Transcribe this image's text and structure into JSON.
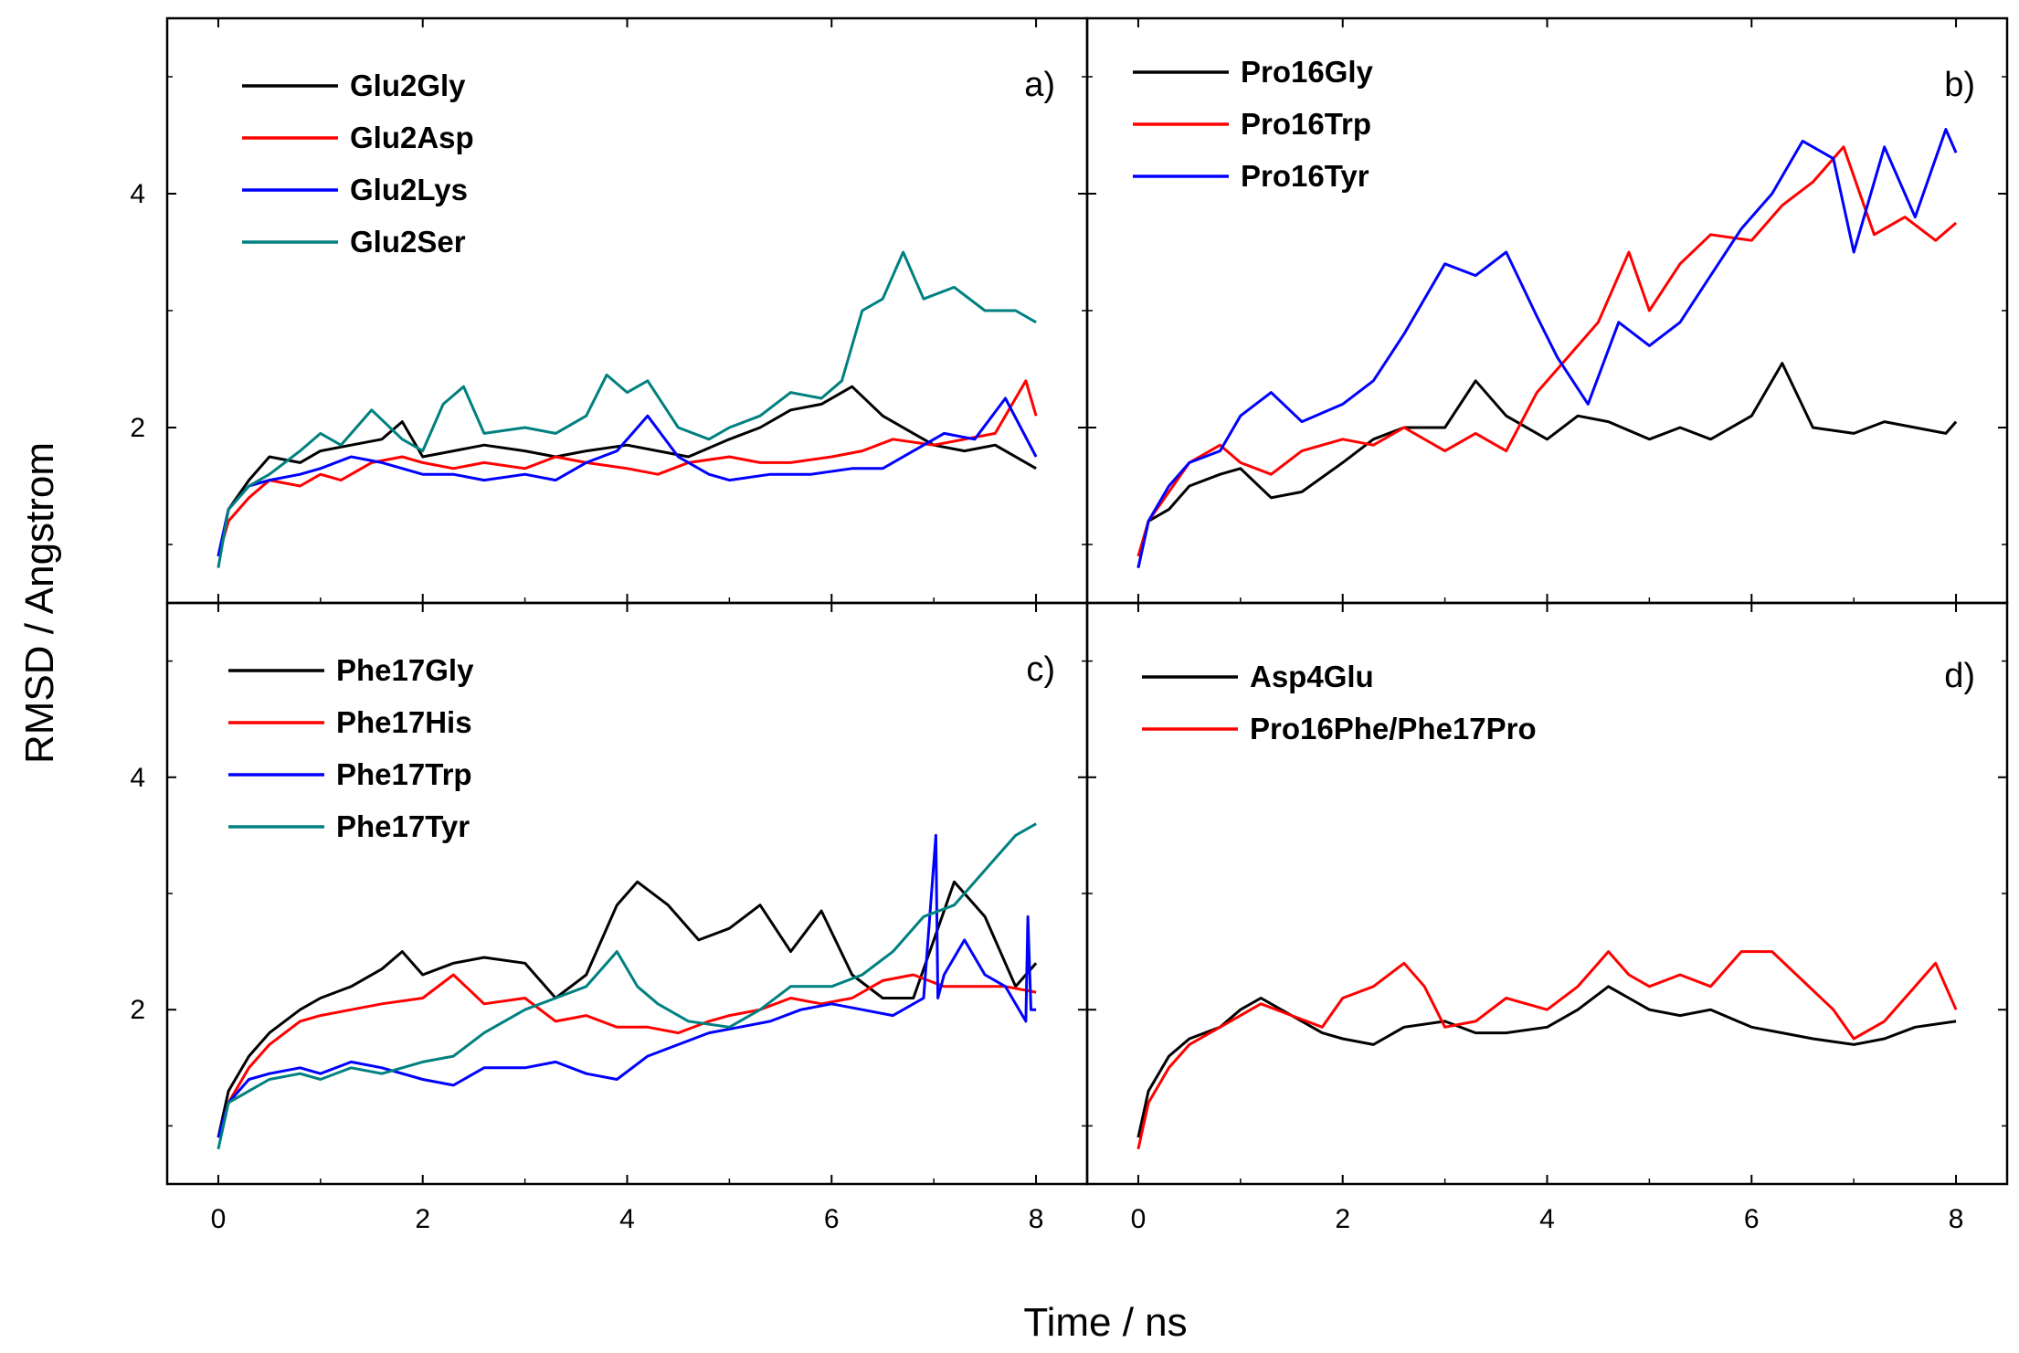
{
  "chart_data": {
    "type": "line",
    "title": "",
    "xlabel": "Time / ns",
    "ylabel": "RMSD / Angstrom",
    "xlim": [
      -0.5,
      8.5
    ],
    "ylim": [
      0.5,
      5.5
    ],
    "x_ticks": [
      0,
      2,
      4,
      6,
      8
    ],
    "x_tick_labels": [
      "0",
      "2",
      "4",
      "6",
      "8"
    ],
    "y_ticks": [
      2,
      4
    ],
    "y_tick_labels": [
      "2",
      "4"
    ],
    "colors": {
      "black": "#000000",
      "red": "#ff0000",
      "blue": "#0000ff",
      "teal": "#008080"
    },
    "panels": [
      {
        "label": "a)",
        "series": [
          {
            "name": "Glu2Gly",
            "color": "#000000",
            "x": [
              0,
              0.1,
              0.3,
              0.5,
              0.8,
              1.0,
              1.3,
              1.6,
              1.8,
              2.0,
              2.3,
              2.6,
              3.0,
              3.3,
              3.6,
              4.0,
              4.3,
              4.6,
              5.0,
              5.3,
              5.6,
              5.9,
              6.2,
              6.5,
              6.8,
              7.0,
              7.3,
              7.6,
              8.0
            ],
            "values": [
              0.9,
              1.3,
              1.55,
              1.75,
              1.7,
              1.8,
              1.85,
              1.9,
              2.05,
              1.75,
              1.8,
              1.85,
              1.8,
              1.75,
              1.8,
              1.85,
              1.8,
              1.75,
              1.9,
              2.0,
              2.15,
              2.2,
              2.35,
              2.1,
              1.95,
              1.85,
              1.8,
              1.85,
              1.65
            ]
          },
          {
            "name": "Glu2Asp",
            "color": "#ff0000",
            "x": [
              0,
              0.1,
              0.3,
              0.5,
              0.8,
              1.0,
              1.2,
              1.5,
              1.8,
              2.0,
              2.3,
              2.6,
              3.0,
              3.3,
              3.6,
              4.0,
              4.3,
              4.6,
              5.0,
              5.3,
              5.6,
              6.0,
              6.3,
              6.6,
              7.0,
              7.3,
              7.6,
              7.9,
              8.0
            ],
            "values": [
              0.9,
              1.2,
              1.4,
              1.55,
              1.5,
              1.6,
              1.55,
              1.7,
              1.75,
              1.7,
              1.65,
              1.7,
              1.65,
              1.75,
              1.7,
              1.65,
              1.6,
              1.7,
              1.75,
              1.7,
              1.7,
              1.75,
              1.8,
              1.9,
              1.85,
              1.9,
              1.95,
              2.4,
              2.1
            ]
          },
          {
            "name": "Glu2Lys",
            "color": "#0000ff",
            "x": [
              0,
              0.1,
              0.3,
              0.5,
              0.8,
              1.0,
              1.3,
              1.6,
              2.0,
              2.3,
              2.6,
              3.0,
              3.3,
              3.6,
              3.9,
              4.2,
              4.5,
              4.8,
              5.0,
              5.4,
              5.8,
              6.2,
              6.5,
              6.8,
              7.1,
              7.4,
              7.7,
              8.0
            ],
            "values": [
              0.9,
              1.3,
              1.5,
              1.55,
              1.6,
              1.65,
              1.75,
              1.7,
              1.6,
              1.6,
              1.55,
              1.6,
              1.55,
              1.7,
              1.8,
              2.1,
              1.75,
              1.6,
              1.55,
              1.6,
              1.6,
              1.65,
              1.65,
              1.8,
              1.95,
              1.9,
              2.25,
              1.75
            ]
          },
          {
            "name": "Glu2Ser",
            "color": "#008080",
            "x": [
              0,
              0.1,
              0.3,
              0.5,
              0.8,
              1.0,
              1.2,
              1.5,
              1.8,
              2.0,
              2.2,
              2.4,
              2.6,
              3.0,
              3.3,
              3.6,
              3.8,
              4.0,
              4.2,
              4.5,
              4.8,
              5.0,
              5.3,
              5.6,
              5.9,
              6.1,
              6.3,
              6.5,
              6.7,
              6.9,
              7.2,
              7.5,
              7.8,
              8.0
            ],
            "values": [
              0.8,
              1.3,
              1.5,
              1.6,
              1.8,
              1.95,
              1.85,
              2.15,
              1.9,
              1.8,
              2.2,
              2.35,
              1.95,
              2.0,
              1.95,
              2.1,
              2.45,
              2.3,
              2.4,
              2.0,
              1.9,
              2.0,
              2.1,
              2.3,
              2.25,
              2.4,
              3.0,
              3.1,
              3.5,
              3.1,
              3.2,
              3.0,
              3.0,
              2.9
            ]
          }
        ]
      },
      {
        "label": "b)",
        "series": [
          {
            "name": "Pro16Gly",
            "color": "#000000",
            "x": [
              0,
              0.1,
              0.3,
              0.5,
              0.8,
              1.0,
              1.3,
              1.6,
              2.0,
              2.3,
              2.6,
              3.0,
              3.3,
              3.6,
              4.0,
              4.3,
              4.6,
              5.0,
              5.3,
              5.6,
              6.0,
              6.3,
              6.6,
              7.0,
              7.3,
              7.6,
              7.9,
              8.0
            ],
            "values": [
              0.8,
              1.2,
              1.3,
              1.5,
              1.6,
              1.65,
              1.4,
              1.45,
              1.7,
              1.9,
              2.0,
              2.0,
              2.4,
              2.1,
              1.9,
              2.1,
              2.05,
              1.9,
              2.0,
              1.9,
              2.1,
              2.55,
              2.0,
              1.95,
              2.05,
              2.0,
              1.95,
              2.05
            ]
          },
          {
            "name": "Pro16Trp",
            "color": "#ff0000",
            "x": [
              0,
              0.1,
              0.3,
              0.5,
              0.8,
              1.0,
              1.3,
              1.6,
              2.0,
              2.3,
              2.6,
              3.0,
              3.3,
              3.6,
              3.9,
              4.2,
              4.5,
              4.8,
              5.0,
              5.3,
              5.6,
              6.0,
              6.3,
              6.6,
              6.9,
              7.2,
              7.5,
              7.8,
              8.0
            ],
            "values": [
              0.9,
              1.2,
              1.45,
              1.7,
              1.85,
              1.7,
              1.6,
              1.8,
              1.9,
              1.85,
              2.0,
              1.8,
              1.95,
              1.8,
              2.3,
              2.6,
              2.9,
              3.5,
              3.0,
              3.4,
              3.65,
              3.6,
              3.9,
              4.1,
              4.4,
              3.65,
              3.8,
              3.6,
              3.75
            ]
          },
          {
            "name": "Pro16Tyr",
            "color": "#0000ff",
            "x": [
              0,
              0.1,
              0.3,
              0.5,
              0.8,
              1.0,
              1.3,
              1.6,
              2.0,
              2.3,
              2.6,
              3.0,
              3.3,
              3.6,
              3.9,
              4.1,
              4.4,
              4.7,
              5.0,
              5.3,
              5.6,
              5.9,
              6.2,
              6.5,
              6.8,
              7.0,
              7.3,
              7.6,
              7.9,
              8.0
            ],
            "values": [
              0.8,
              1.2,
              1.5,
              1.7,
              1.8,
              2.1,
              2.3,
              2.05,
              2.2,
              2.4,
              2.8,
              3.4,
              3.3,
              3.5,
              2.95,
              2.6,
              2.2,
              2.9,
              2.7,
              2.9,
              3.3,
              3.7,
              4.0,
              4.45,
              4.3,
              3.5,
              4.4,
              3.8,
              4.55,
              4.35
            ]
          }
        ]
      },
      {
        "label": "c)",
        "series": [
          {
            "name": "Phe17Gly",
            "color": "#000000",
            "x": [
              0,
              0.1,
              0.3,
              0.5,
              0.8,
              1.0,
              1.3,
              1.6,
              1.8,
              2.0,
              2.3,
              2.6,
              3.0,
              3.3,
              3.6,
              3.9,
              4.1,
              4.4,
              4.7,
              5.0,
              5.3,
              5.6,
              5.9,
              6.2,
              6.5,
              6.8,
              7.0,
              7.2,
              7.5,
              7.8,
              8.0
            ],
            "values": [
              0.9,
              1.3,
              1.6,
              1.8,
              2.0,
              2.1,
              2.2,
              2.35,
              2.5,
              2.3,
              2.4,
              2.45,
              2.4,
              2.1,
              2.3,
              2.9,
              3.1,
              2.9,
              2.6,
              2.7,
              2.9,
              2.5,
              2.85,
              2.3,
              2.1,
              2.1,
              2.6,
              3.1,
              2.8,
              2.2,
              2.4
            ]
          },
          {
            "name": "Phe17His",
            "color": "#ff0000",
            "x": [
              0,
              0.1,
              0.3,
              0.5,
              0.8,
              1.0,
              1.3,
              1.6,
              2.0,
              2.3,
              2.6,
              3.0,
              3.3,
              3.6,
              3.9,
              4.2,
              4.5,
              4.8,
              5.0,
              5.3,
              5.6,
              5.9,
              6.2,
              6.5,
              6.8,
              7.1,
              7.4,
              7.7,
              8.0
            ],
            "values": [
              0.9,
              1.2,
              1.5,
              1.7,
              1.9,
              1.95,
              2.0,
              2.05,
              2.1,
              2.3,
              2.05,
              2.1,
              1.9,
              1.95,
              1.85,
              1.85,
              1.8,
              1.9,
              1.95,
              2.0,
              2.1,
              2.05,
              2.1,
              2.25,
              2.3,
              2.2,
              2.2,
              2.2,
              2.15
            ]
          },
          {
            "name": "Phe17Trp",
            "color": "#0000ff",
            "x": [
              0,
              0.1,
              0.3,
              0.5,
              0.8,
              1.0,
              1.3,
              1.6,
              2.0,
              2.3,
              2.6,
              3.0,
              3.3,
              3.6,
              3.9,
              4.2,
              4.5,
              4.8,
              5.1,
              5.4,
              5.7,
              6.0,
              6.3,
              6.6,
              6.9,
              7.02,
              7.04,
              7.1,
              7.3,
              7.5,
              7.7,
              7.9,
              7.92,
              7.95,
              8.0
            ],
            "values": [
              0.9,
              1.2,
              1.4,
              1.45,
              1.5,
              1.45,
              1.55,
              1.5,
              1.4,
              1.35,
              1.5,
              1.5,
              1.55,
              1.45,
              1.4,
              1.6,
              1.7,
              1.8,
              1.85,
              1.9,
              2.0,
              2.05,
              2.0,
              1.95,
              2.1,
              3.5,
              2.1,
              2.3,
              2.6,
              2.3,
              2.2,
              1.9,
              2.8,
              2.0,
              2.0
            ]
          },
          {
            "name": "Phe17Tyr",
            "color": "#008080",
            "x": [
              0,
              0.1,
              0.3,
              0.5,
              0.8,
              1.0,
              1.3,
              1.6,
              2.0,
              2.3,
              2.6,
              3.0,
              3.3,
              3.6,
              3.9,
              4.1,
              4.3,
              4.6,
              5.0,
              5.3,
              5.6,
              6.0,
              6.3,
              6.6,
              6.9,
              7.2,
              7.4,
              7.6,
              7.8,
              8.0
            ],
            "values": [
              0.8,
              1.2,
              1.3,
              1.4,
              1.45,
              1.4,
              1.5,
              1.45,
              1.55,
              1.6,
              1.8,
              2.0,
              2.1,
              2.2,
              2.5,
              2.2,
              2.05,
              1.9,
              1.85,
              2.0,
              2.2,
              2.2,
              2.3,
              2.5,
              2.8,
              2.9,
              3.1,
              3.3,
              3.5,
              3.6
            ]
          }
        ]
      },
      {
        "label": "d)",
        "series": [
          {
            "name": "Asp4Glu",
            "color": "#000000",
            "x": [
              0,
              0.1,
              0.3,
              0.5,
              0.8,
              1.0,
              1.2,
              1.5,
              1.8,
              2.0,
              2.3,
              2.6,
              3.0,
              3.3,
              3.6,
              4.0,
              4.3,
              4.6,
              4.8,
              5.0,
              5.3,
              5.6,
              6.0,
              6.3,
              6.6,
              7.0,
              7.3,
              7.6,
              8.0
            ],
            "values": [
              0.9,
              1.3,
              1.6,
              1.75,
              1.85,
              2.0,
              2.1,
              1.95,
              1.8,
              1.75,
              1.7,
              1.85,
              1.9,
              1.8,
              1.8,
              1.85,
              2.0,
              2.2,
              2.1,
              2.0,
              1.95,
              2.0,
              1.85,
              1.8,
              1.75,
              1.7,
              1.75,
              1.85,
              1.9
            ]
          },
          {
            "name": "Pro16Phe/Phe17Pro",
            "color": "#ff0000",
            "x": [
              0,
              0.1,
              0.3,
              0.5,
              0.8,
              1.0,
              1.2,
              1.5,
              1.8,
              2.0,
              2.3,
              2.6,
              2.8,
              3.0,
              3.3,
              3.6,
              4.0,
              4.3,
              4.6,
              4.8,
              5.0,
              5.3,
              5.6,
              5.9,
              6.2,
              6.5,
              6.8,
              7.0,
              7.3,
              7.6,
              7.8,
              8.0
            ],
            "values": [
              0.8,
              1.2,
              1.5,
              1.7,
              1.85,
              1.95,
              2.05,
              1.95,
              1.85,
              2.1,
              2.2,
              2.4,
              2.2,
              1.85,
              1.9,
              2.1,
              2.0,
              2.2,
              2.5,
              2.3,
              2.2,
              2.3,
              2.2,
              2.5,
              2.5,
              2.25,
              2.0,
              1.75,
              1.9,
              2.2,
              2.4,
              2.0
            ]
          }
        ]
      }
    ]
  }
}
